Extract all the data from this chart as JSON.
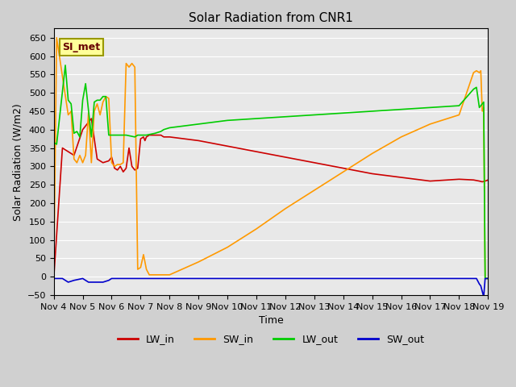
{
  "title": "Solar Radiation from CNR1",
  "xlabel": "Time",
  "ylabel": "Solar Radiation (W/m2)",
  "annotation": "SI_met",
  "ylim": [
    -50,
    675
  ],
  "yticks": [
    -50,
    0,
    50,
    100,
    150,
    200,
    250,
    300,
    350,
    400,
    450,
    500,
    550,
    600,
    650
  ],
  "background_color": "#e8e8e8",
  "grid_color": "#ffffff",
  "legend": [
    "LW_in",
    "SW_in",
    "LW_out",
    "SW_out"
  ],
  "colors": {
    "LW_in": "#cc0000",
    "SW_in": "#ff9900",
    "LW_out": "#00cc00",
    "SW_out": "#0000cc"
  },
  "x_tick_labels": [
    "Nov 4",
    "Nov 5",
    "Nov 6",
    "Nov 7",
    "Nov 8",
    "Nov 9",
    "Nov 10",
    "Nov 11",
    "Nov 12",
    "Nov 13",
    "Nov 14",
    "Nov 15",
    "Nov 16",
    "Nov 17",
    "Nov 18",
    "Nov 19"
  ],
  "LW_in": {
    "x": [
      0,
      0.3,
      0.5,
      0.7,
      1.0,
      1.3,
      1.5,
      1.7,
      1.9,
      2.0,
      2.1,
      2.2,
      2.3,
      2.4,
      2.5,
      2.6,
      2.7,
      2.8,
      2.9,
      3.0,
      3.1,
      3.15,
      3.2,
      3.3,
      3.5,
      3.7,
      3.8,
      4.0,
      5.0,
      6.0,
      7.0,
      8.0,
      9.0,
      10.0,
      11.0,
      12.0,
      13.0,
      14.0,
      14.5,
      14.7,
      14.8,
      14.9,
      15.0
    ],
    "y": [
      -5,
      350,
      340,
      330,
      400,
      430,
      320,
      310,
      315,
      325,
      295,
      290,
      300,
      285,
      295,
      350,
      300,
      290,
      295,
      375,
      380,
      370,
      380,
      385,
      385,
      385,
      380,
      380,
      370,
      355,
      340,
      325,
      310,
      295,
      280,
      270,
      260,
      265,
      263,
      260,
      258,
      260,
      263
    ]
  },
  "SW_in": {
    "x": [
      0,
      0.1,
      0.5,
      0.6,
      0.7,
      0.8,
      0.9,
      1.0,
      1.1,
      1.2,
      1.3,
      1.4,
      1.5,
      1.6,
      1.7,
      1.8,
      1.9,
      2.0,
      2.1,
      2.2,
      2.3,
      2.4,
      2.5,
      2.6,
      2.7,
      2.8,
      2.9,
      3.0,
      3.1,
      3.2,
      3.3,
      3.5,
      3.7,
      3.8,
      3.9,
      4.0,
      5.0,
      6.0,
      7.0,
      8.0,
      9.0,
      10.0,
      11.0,
      12.0,
      13.0,
      14.0,
      14.5,
      14.6,
      14.7,
      14.75,
      14.8,
      14.85,
      14.9,
      15.0
    ],
    "y": [
      -5,
      650,
      440,
      450,
      320,
      310,
      330,
      310,
      330,
      445,
      310,
      450,
      470,
      440,
      475,
      490,
      485,
      310,
      300,
      305,
      305,
      310,
      580,
      570,
      580,
      570,
      20,
      25,
      60,
      20,
      5,
      5,
      5,
      5,
      5,
      5,
      40,
      80,
      130,
      185,
      235,
      285,
      335,
      380,
      415,
      440,
      555,
      560,
      555,
      560,
      450,
      460,
      -5,
      -5
    ]
  },
  "LW_out": {
    "x": [
      0,
      0.1,
      0.4,
      0.5,
      0.6,
      0.7,
      0.8,
      0.9,
      1.0,
      1.1,
      1.3,
      1.4,
      1.5,
      1.6,
      1.7,
      1.8,
      1.9,
      2.0,
      2.1,
      2.5,
      2.8,
      2.9,
      3.0,
      3.2,
      3.5,
      3.7,
      3.8,
      4.0,
      5.0,
      6.0,
      7.0,
      8.0,
      9.0,
      10.0,
      11.0,
      12.0,
      13.0,
      14.0,
      14.5,
      14.6,
      14.7,
      14.75,
      14.8,
      14.85,
      14.9,
      15.0
    ],
    "y": [
      365,
      360,
      575,
      480,
      470,
      390,
      395,
      380,
      480,
      525,
      380,
      475,
      480,
      480,
      490,
      490,
      385,
      385,
      385,
      385,
      380,
      385,
      385,
      385,
      390,
      395,
      400,
      405,
      415,
      425,
      430,
      435,
      440,
      445,
      450,
      455,
      460,
      465,
      510,
      515,
      460,
      465,
      470,
      475,
      -5,
      -5
    ]
  },
  "SW_out": {
    "x": [
      0,
      0.3,
      0.5,
      0.7,
      1.0,
      1.2,
      1.5,
      1.7,
      1.9,
      2.0,
      2.3,
      2.5,
      2.8,
      2.9,
      3.0,
      3.5,
      4.0,
      5.0,
      6.0,
      7.0,
      8.0,
      9.0,
      10.0,
      11.0,
      12.0,
      13.0,
      14.0,
      14.5,
      14.6,
      14.7,
      14.75,
      14.8,
      14.85,
      14.9,
      15.0
    ],
    "y": [
      -5,
      -5,
      -15,
      -10,
      -5,
      -15,
      -15,
      -15,
      -10,
      -5,
      -5,
      -5,
      -5,
      -5,
      -5,
      -5,
      -5,
      -5,
      -5,
      -5,
      -5,
      -5,
      -5,
      -5,
      -5,
      -5,
      -5,
      -5,
      -5,
      -20,
      -25,
      -40,
      -55,
      -5,
      -5
    ]
  }
}
